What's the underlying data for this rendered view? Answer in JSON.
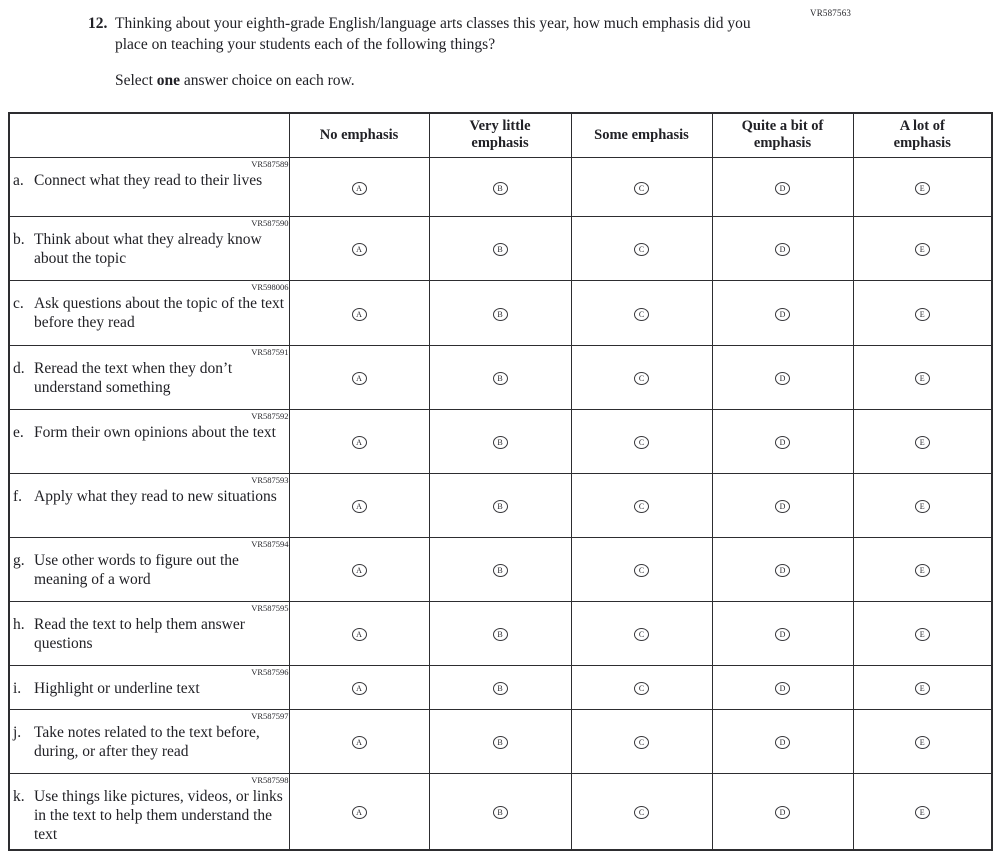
{
  "page": {
    "top_code": "VR587563",
    "question_number": "12.",
    "question_text": "Thinking about your eighth-grade English/language arts classes this year, how much emphasis did you place on teaching your students each of the following things?",
    "instruction": {
      "pre": "Select ",
      "bold": "one",
      "post": " answer choice on each row."
    }
  },
  "table": {
    "columns": [
      "No emphasis",
      "Very little\nemphasis",
      "Some emphasis",
      "Quite a bit of\nemphasis",
      "A lot of\nemphasis"
    ],
    "options": [
      "A",
      "B",
      "C",
      "D",
      "E"
    ],
    "rows": [
      {
        "code": "VR587589",
        "letter": "a.",
        "text": "Connect what they read to their lives"
      },
      {
        "code": "VR587590",
        "letter": "b.",
        "text": "Think about what they already know about the topic"
      },
      {
        "code": "VR598006",
        "letter": "c.",
        "text": "Ask questions about the topic of the text before they read"
      },
      {
        "code": "VR587591",
        "letter": "d.",
        "text": "Reread the text when they don’t understand something"
      },
      {
        "code": "VR587592",
        "letter": "e.",
        "text": "Form their own opinions about the text"
      },
      {
        "code": "VR587593",
        "letter": "f.",
        "text": "Apply what they read to new situations"
      },
      {
        "code": "VR587594",
        "letter": "g.",
        "text": "Use other words to figure out the meaning of a word"
      },
      {
        "code": "VR587595",
        "letter": "h.",
        "text": "Read the text to help them answer questions"
      },
      {
        "code": "VR587596",
        "letter": "i.",
        "text": "Highlight or underline text"
      },
      {
        "code": "VR587597",
        "letter": "j.",
        "text": "Take notes related to the text before, during, or after they read"
      },
      {
        "code": "VR587598",
        "letter": "k.",
        "text": "Use things like pictures, videos, or links in the text to help them understand the text"
      }
    ]
  }
}
